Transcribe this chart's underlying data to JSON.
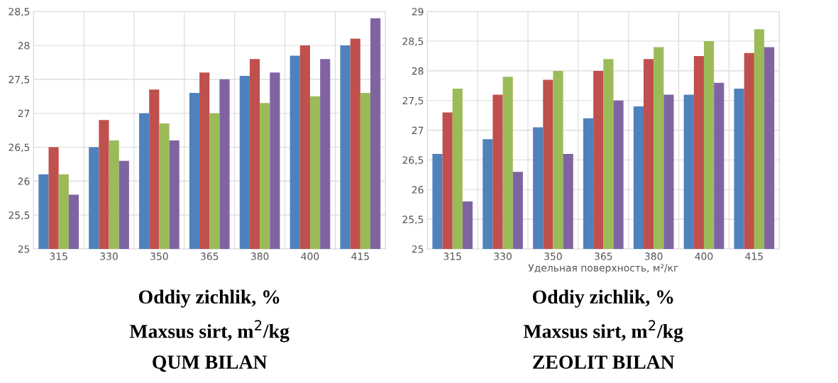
{
  "chart_data": [
    {
      "type": "bar",
      "categories": [
        "315",
        "330",
        "350",
        "365",
        "380",
        "400",
        "415"
      ],
      "series": [
        {
          "color": "#4f81bd",
          "values": [
            26.1,
            26.5,
            27.0,
            27.3,
            27.55,
            27.85,
            28.0
          ]
        },
        {
          "color": "#c0504d",
          "values": [
            26.5,
            26.9,
            27.35,
            27.6,
            27.8,
            28.0,
            28.1
          ]
        },
        {
          "color": "#9bbb59",
          "values": [
            26.1,
            26.6,
            26.85,
            27.0,
            27.15,
            27.25,
            27.3
          ]
        },
        {
          "color": "#8064a2",
          "values": [
            25.8,
            26.3,
            26.6,
            27.5,
            27.6,
            27.8,
            28.4
          ]
        }
      ],
      "ylim": [
        25,
        28.5
      ],
      "yticks": [
        25,
        {
          "value": 25.5,
          "label": "25,5"
        },
        26,
        {
          "value": 26.5,
          "label": "26,5"
        },
        27,
        {
          "value": 27.5,
          "label": "27,5"
        },
        28,
        {
          "value": 28.5,
          "label": "28,5"
        }
      ],
      "grid": true,
      "legend": false,
      "annotations": [
        "Oddiy zichlik, %",
        "Maxsus sirt, m$^{2}$/kg",
        "QUM BILAN"
      ]
    },
    {
      "type": "bar",
      "categories": [
        "315",
        "330",
        "350",
        "365",
        "380",
        "400",
        "415"
      ],
      "series": [
        {
          "color": "#4f81bd",
          "values": [
            26.6,
            26.85,
            27.05,
            27.2,
            27.4,
            27.6,
            27.7
          ]
        },
        {
          "color": "#c0504d",
          "values": [
            27.3,
            27.6,
            27.85,
            28.0,
            28.2,
            28.25,
            28.3
          ]
        },
        {
          "color": "#9bbb59",
          "values": [
            27.7,
            27.9,
            28.0,
            28.2,
            28.4,
            28.5,
            28.7
          ]
        },
        {
          "color": "#8064a2",
          "values": [
            25.8,
            26.3,
            26.6,
            27.5,
            27.6,
            27.8,
            28.4
          ]
        }
      ],
      "ylim": [
        25,
        29
      ],
      "yticks": [
        25,
        {
          "value": 25.5,
          "label": "25,5"
        },
        26,
        {
          "value": 26.5,
          "label": "26,5"
        },
        27,
        {
          "value": 27.5,
          "label": "27,5"
        },
        28,
        {
          "value": 28.5,
          "label": "28,5"
        },
        29
      ],
      "grid": true,
      "legend": false,
      "xlabel": "Удельная поверхность, м²/кг",
      "annotations": [
        "Oddiy zichlik, %",
        "Maxsus sirt, m$^{2}$/kg",
        "ZEOLIT BILAN"
      ]
    }
  ]
}
